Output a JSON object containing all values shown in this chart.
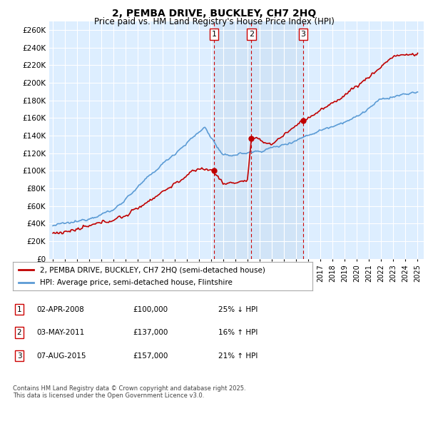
{
  "title": "2, PEMBA DRIVE, BUCKLEY, CH7 2HQ",
  "subtitle": "Price paid vs. HM Land Registry's House Price Index (HPI)",
  "ylim": [
    0,
    270000
  ],
  "yticks": [
    0,
    20000,
    40000,
    60000,
    80000,
    100000,
    120000,
    140000,
    160000,
    180000,
    200000,
    220000,
    240000,
    260000
  ],
  "sale_dates": [
    2008.25,
    2011.33,
    2015.58
  ],
  "sale_prices": [
    100000,
    137000,
    157000
  ],
  "sale_labels": [
    "1",
    "2",
    "3"
  ],
  "hpi_color": "#5b9bd5",
  "price_color": "#c00000",
  "background_color": "#ddeeff",
  "grid_color": "#ffffff",
  "shade_color": "#cce0f5",
  "legend_label_price": "2, PEMBA DRIVE, BUCKLEY, CH7 2HQ (semi-detached house)",
  "legend_label_hpi": "HPI: Average price, semi-detached house, Flintshire",
  "table_rows": [
    {
      "num": "1",
      "date": "02-APR-2008",
      "price": "£100,000",
      "change": "25% ↓ HPI"
    },
    {
      "num": "2",
      "date": "03-MAY-2011",
      "price": "£137,000",
      "change": "16% ↑ HPI"
    },
    {
      "num": "3",
      "date": "07-AUG-2015",
      "price": "£157,000",
      "change": "21% ↑ HPI"
    }
  ],
  "footnote": "Contains HM Land Registry data © Crown copyright and database right 2025.\nThis data is licensed under the Open Government Licence v3.0."
}
